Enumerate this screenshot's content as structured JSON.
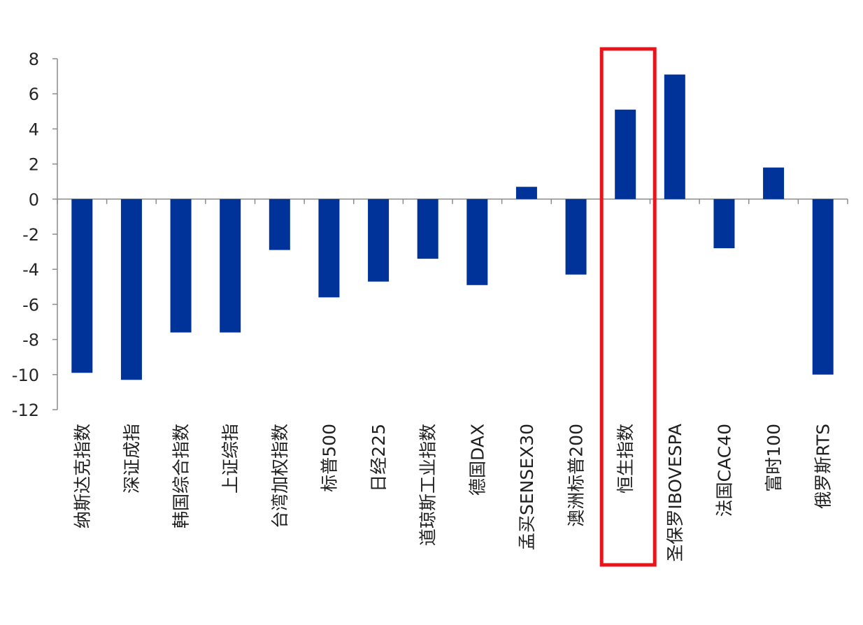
{
  "chart_data": {
    "type": "bar",
    "title": "",
    "xlabel": "",
    "ylabel": "",
    "ylim": [
      -12,
      8
    ],
    "yticks": [
      8,
      6,
      4,
      2,
      0,
      -2,
      -4,
      -6,
      -8,
      -10,
      -12
    ],
    "ytick_labels": [
      "8",
      "6",
      "4",
      "2",
      "0",
      "-2",
      "-4",
      "-6",
      "-8",
      "-10",
      "-12"
    ],
    "grid": false,
    "legend": "none",
    "bar_color": "#003399",
    "highlight_color": "#e8141b",
    "highlight_category": "恒生指数",
    "categories": [
      "纳斯达克指数",
      "深证成指",
      "韩国综合指数",
      "上证综指",
      "台湾加权指数",
      "标普500",
      "日经225",
      "道琼斯工业指数",
      "德国DAX",
      "孟买SENSEX30",
      "澳洲标普200",
      "恒生指数",
      "圣保罗IBOVESPA",
      "法国CAC40",
      "富时100",
      "俄罗斯RTS"
    ],
    "values": [
      -9.9,
      -10.3,
      -7.6,
      -7.6,
      -2.9,
      -5.6,
      -4.7,
      -3.4,
      -4.9,
      0.7,
      -4.3,
      5.1,
      7.1,
      -2.8,
      1.8,
      -10.0
    ]
  }
}
